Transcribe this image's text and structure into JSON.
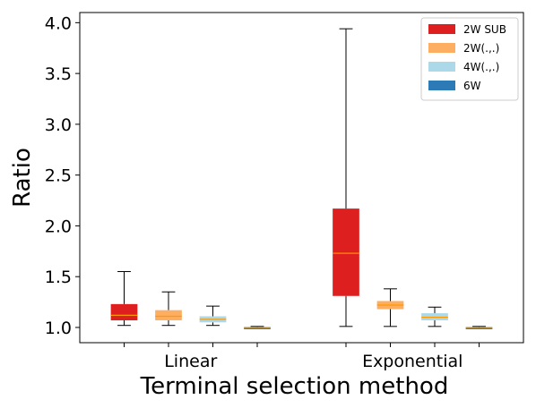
{
  "chart_data": {
    "type": "boxplot",
    "xlabel": "Terminal selection method",
    "ylabel": "Ratio",
    "ylim": [
      0.85,
      4.1
    ],
    "yticks": [
      1.0,
      1.5,
      2.0,
      2.5,
      3.0,
      3.5,
      4.0
    ],
    "ytick_labels": [
      "1.0",
      "1.5",
      "2.0",
      "2.5",
      "3.0",
      "3.5",
      "4.0"
    ],
    "groups": [
      "Linear",
      "Exponential"
    ],
    "grid": false,
    "legend_position": "top-right",
    "median_color": "#ff9900",
    "series": [
      {
        "name": "2W SUB",
        "color": "#de1f1f",
        "boxes": [
          {
            "min": 1.02,
            "q1": 1.07,
            "median": 1.12,
            "q3": 1.23,
            "max": 1.55
          },
          {
            "min": 1.01,
            "q1": 1.31,
            "median": 1.73,
            "q3": 2.17,
            "max": 3.94
          }
        ]
      },
      {
        "name": "2W(.,.)",
        "color": "#fdae61",
        "boxes": [
          {
            "min": 1.02,
            "q1": 1.07,
            "median": 1.11,
            "q3": 1.17,
            "max": 1.35
          },
          {
            "min": 1.01,
            "q1": 1.18,
            "median": 1.22,
            "q3": 1.26,
            "max": 1.38
          }
        ]
      },
      {
        "name": "4W(.,.)",
        "color": "#abd9e9",
        "boxes": [
          {
            "min": 1.02,
            "q1": 1.05,
            "median": 1.08,
            "q3": 1.11,
            "max": 1.21
          },
          {
            "min": 1.01,
            "q1": 1.07,
            "median": 1.1,
            "q3": 1.14,
            "max": 1.2
          }
        ]
      },
      {
        "name": "6W",
        "color": "#2c7bb6",
        "boxes": [
          {
            "min": 0.99,
            "q1": 0.99,
            "median": 1.0,
            "q3": 1.0,
            "max": 1.01
          },
          {
            "min": 0.99,
            "q1": 0.99,
            "median": 1.0,
            "q3": 1.0,
            "max": 1.01
          }
        ]
      }
    ]
  }
}
